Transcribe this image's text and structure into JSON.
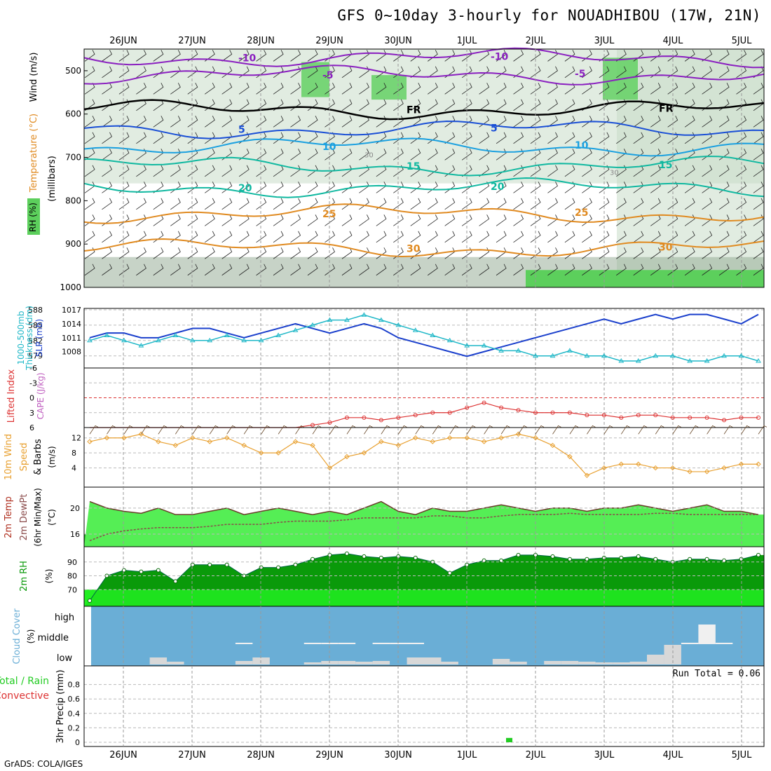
{
  "title": "GFS 0~10day 3-hourly for NOUADHIBOU (17W, 21N)",
  "credit": "GrADS: COLA/IGES",
  "dates": [
    "26JUN",
    "27JUN",
    "28JUN",
    "29JUN",
    "30JUN",
    "1JUL",
    "2JUL",
    "3JUL",
    "4JUL",
    "5JUL"
  ],
  "colors": {
    "rh_dark": "#8fa88f",
    "rh_mid": "#c9dcc9",
    "rh_green": "#5ccf5c",
    "temp": "#e08a20",
    "wind_purple": "#8a1fc0",
    "cold_blue": "#1a4fd6",
    "cloud": "#6aaed6",
    "cloud_bar": "#d8d8d8",
    "rh2m": "#0a9a0a",
    "precip": "#22cc22",
    "slp": "#1a3fcc",
    "thick": "#20b8c8",
    "cape": "#dd3333",
    "wind10": "#e8a030"
  },
  "chart_data": [
    {
      "panel": "upper-air",
      "type": "heatmap",
      "ylabel_parts": [
        "RH (%)",
        "Temperature (°C)",
        "Wind (m/s)",
        "(millibars)"
      ],
      "y_ticks": [
        500,
        600,
        700,
        800,
        900,
        1000
      ],
      "ylim": [
        1000,
        450
      ],
      "temp_contours": [
        {
          "label": "-10",
          "mb": 470
        },
        {
          "label": "-5",
          "mb": 510
        },
        {
          "label": "FR",
          "mb": 590
        },
        {
          "label": "5",
          "mb": 635
        },
        {
          "label": "10",
          "mb": 675
        },
        {
          "label": "15",
          "mb": 720
        },
        {
          "label": "20",
          "mb": 770
        },
        {
          "label": "25",
          "mb": 830
        },
        {
          "label": "30",
          "mb": 910
        }
      ],
      "rh_labels": [
        "30"
      ]
    },
    {
      "panel": "thickness-slp",
      "type": "line",
      "y_left_ticks": [
        579,
        582,
        585,
        588
      ],
      "y_right_ticks": [
        1008,
        1011,
        1014,
        1017
      ],
      "ylabel_parts": [
        "1000-500mb",
        "Thickness (dm)",
        "SLP (mb)"
      ],
      "series": [
        {
          "name": "SLP (mb)",
          "values": [
            1011,
            1012,
            1012,
            1011,
            1011,
            1012,
            1013,
            1013,
            1012,
            1011,
            1012,
            1013,
            1014,
            1013,
            1012,
            1013,
            1014,
            1013,
            1011,
            1010,
            1009,
            1008,
            1007,
            1008,
            1009,
            1010,
            1011,
            1012,
            1013,
            1014,
            1015,
            1014,
            1015,
            1016,
            1015,
            1016,
            1016,
            1015,
            1014,
            1016
          ]
        },
        {
          "name": "1000-500mb Thickness (dm)",
          "values": [
            582,
            583,
            582,
            581,
            582,
            583,
            582,
            582,
            583,
            582,
            582,
            583,
            584,
            585,
            586,
            586,
            587,
            586,
            585,
            584,
            583,
            582,
            581,
            581,
            580,
            580,
            579,
            579,
            580,
            579,
            579,
            578,
            578,
            579,
            579,
            578,
            578,
            579,
            579,
            578
          ]
        }
      ]
    },
    {
      "panel": "stability",
      "type": "line",
      "y_ticks": [
        -6,
        -3,
        0,
        3,
        6
      ],
      "ylabel_parts": [
        "Lifted Index",
        "CAPE (J/kg)"
      ],
      "series": [
        {
          "name": "Lifted Index",
          "values": [
            6,
            6,
            6,
            6,
            6,
            6,
            6,
            6,
            6,
            6,
            6,
            6,
            6,
            5.5,
            5,
            4,
            4,
            4.5,
            4,
            3.5,
            3,
            3,
            2,
            1,
            2,
            2.5,
            3,
            3,
            3,
            3.5,
            3.5,
            4,
            3.5,
            3.5,
            4,
            4,
            4,
            4.5,
            4,
            4
          ]
        }
      ]
    },
    {
      "panel": "wind10m",
      "type": "line",
      "y_ticks": [
        4,
        8,
        12
      ],
      "ylabel_parts": [
        "10m Wind",
        "Speed",
        "& Barbs",
        "(m/s)"
      ],
      "series": [
        {
          "name": "10m Wind Speed",
          "values": [
            11,
            12,
            12,
            13,
            11,
            10,
            12,
            11,
            12,
            10,
            8,
            8,
            11,
            10,
            4,
            7,
            8,
            11,
            10,
            12,
            11,
            12,
            12,
            11,
            12,
            13,
            12,
            10,
            7,
            2,
            4,
            5,
            5,
            4,
            4,
            3,
            3,
            4,
            5,
            5
          ]
        }
      ]
    },
    {
      "panel": "temp2m",
      "type": "area",
      "y_ticks": [
        16,
        20
      ],
      "ylabel_parts": [
        "2m Temp",
        "2m DewPt",
        "(6hr Min/Max)",
        "(°C)"
      ],
      "series": [
        {
          "name": "2m Temp",
          "values": [
            21,
            20,
            19.5,
            19.2,
            20,
            19,
            19,
            19.5,
            20,
            19,
            19.5,
            20,
            19.5,
            19,
            19.5,
            19,
            20,
            21,
            19.5,
            19,
            20,
            19.5,
            19.5,
            20,
            20.5,
            20,
            19.5,
            20,
            20,
            19.5,
            20,
            20,
            20.5,
            20,
            19.5,
            20,
            20.5,
            19.5,
            19.5,
            19
          ]
        },
        {
          "name": "2m DewPt",
          "values": [
            15,
            16,
            16.5,
            16.8,
            17,
            17,
            17,
            17.2,
            17.5,
            17.5,
            17.5,
            17.8,
            18,
            18,
            18,
            18.2,
            18.5,
            18.5,
            18.5,
            18.5,
            18.8,
            18.8,
            18.5,
            18.5,
            18.8,
            19,
            19,
            19,
            19.2,
            19,
            19,
            19,
            19,
            19.2,
            19.2,
            19,
            19,
            19,
            19,
            19
          ]
        }
      ]
    },
    {
      "panel": "rh2m",
      "type": "area",
      "y_ticks": [
        70,
        80,
        90
      ],
      "ylabel_parts": [
        "2m RH",
        "(%)"
      ],
      "series": [
        {
          "name": "2m RH",
          "values": [
            62,
            80,
            84,
            83,
            84,
            76,
            88,
            88,
            88,
            80,
            86,
            86,
            88,
            92,
            95,
            96,
            94,
            93,
            94,
            93,
            90,
            82,
            88,
            91,
            91,
            95,
            95,
            94,
            92,
            92,
            93,
            93,
            94,
            92,
            90,
            92,
            92,
            91,
            92,
            95
          ]
        }
      ]
    },
    {
      "panel": "cloud",
      "type": "bar",
      "y_ticks": [
        "high",
        "middle",
        "low"
      ],
      "ylabel_parts": [
        "Cloud Cover",
        "(%)"
      ],
      "series": [
        {
          "name": "low",
          "values": [
            0,
            0,
            0,
            0,
            10,
            4,
            0,
            0,
            0,
            5,
            10,
            0,
            0,
            3,
            5,
            5,
            4,
            5,
            0,
            10,
            10,
            4,
            0,
            0,
            8,
            4,
            0,
            5,
            5,
            4,
            3,
            3,
            4,
            14,
            28,
            0,
            0,
            0,
            0,
            0
          ]
        },
        {
          "name": "middle",
          "values": [
            0,
            0,
            0,
            0,
            0,
            0,
            0,
            0,
            0,
            2,
            0,
            0,
            0,
            2,
            2,
            2,
            0,
            2,
            2,
            2,
            0,
            0,
            0,
            0,
            0,
            0,
            0,
            0,
            0,
            0,
            0,
            0,
            0,
            0,
            0,
            2,
            28,
            2,
            0,
            0
          ]
        }
      ]
    },
    {
      "panel": "precip",
      "type": "bar",
      "y_ticks": [
        0,
        0.2,
        0.4,
        0.6,
        0.8
      ],
      "ylabel_parts": [
        "Total / Rain",
        "Convective",
        "3hr Precip (mm)"
      ],
      "annotation": "Run Total = 0.06",
      "series": [
        {
          "name": "3hr Precip",
          "values": [
            0,
            0,
            0,
            0,
            0,
            0,
            0,
            0,
            0,
            0,
            0,
            0,
            0,
            0,
            0,
            0,
            0,
            0,
            0,
            0,
            0,
            0,
            0,
            0,
            0,
            0,
            0,
            0,
            0,
            0,
            0,
            0,
            0,
            0,
            0,
            0,
            0,
            0,
            0.06,
            0
          ]
        }
      ]
    }
  ]
}
